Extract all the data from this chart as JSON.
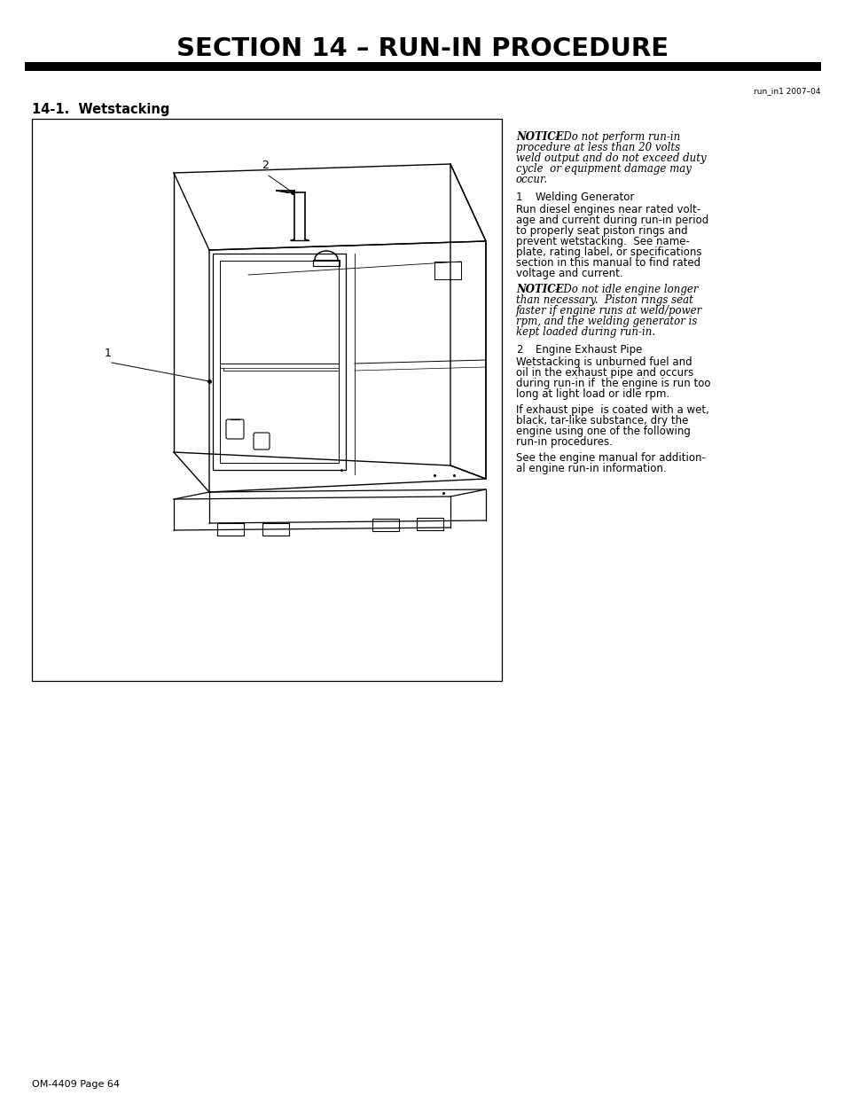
{
  "title": "SECTION 14 – RUN-IN PROCEDURE",
  "run_in_ref": "run_in1 2007–04",
  "section_heading": "14-1.  Wetstacking",
  "notice1_lines": [
    "NOTICE",
    " – Do not perform run-in",
    "procedure at less than 20 volts",
    "weld output and do not exceed duty",
    "cycle  or equipment damage may",
    "occur."
  ],
  "item1_num": "1",
  "item1_label": "Welding Generator",
  "item1_body_lines": [
    "Run diesel engines near rated volt-",
    "age and current during run-in period",
    "to properly seat piston rings and",
    "prevent wetstacking.  See name-",
    "plate, rating label, or specifications",
    "section in this manual to find rated",
    "voltage and current."
  ],
  "notice2_lines": [
    "NOTICE",
    " – Do not idle engine longer",
    "than necessary.  Piston rings seat",
    "faster if engine runs at weld/power",
    "rpm, and the welding generator is",
    "kept loaded during run-in."
  ],
  "item2_num": "2",
  "item2_label": "Engine Exhaust Pipe",
  "item2_body1_lines": [
    "Wetstacking is unburned fuel and",
    "oil in the exhaust pipe and occurs",
    "during run-in if  the engine is run too",
    "long at light load or idle rpm."
  ],
  "item2_body2_lines": [
    "If exhaust pipe  is coated with a wet,",
    "black, tar-like substance, dry the",
    "engine using one of the following",
    "run-in procedures."
  ],
  "item2_body3_lines": [
    "See the engine manual for addition-",
    "al engine run-in information."
  ],
  "footer": "OM-4409 Page 64",
  "bg_color": "#ffffff",
  "text_color": "#000000",
  "title_fontsize": 21,
  "heading_fontsize": 10.5,
  "body_fontsize": 8.5,
  "notice_fontsize": 8.5,
  "small_fontsize": 6.5,
  "footer_fontsize": 8
}
